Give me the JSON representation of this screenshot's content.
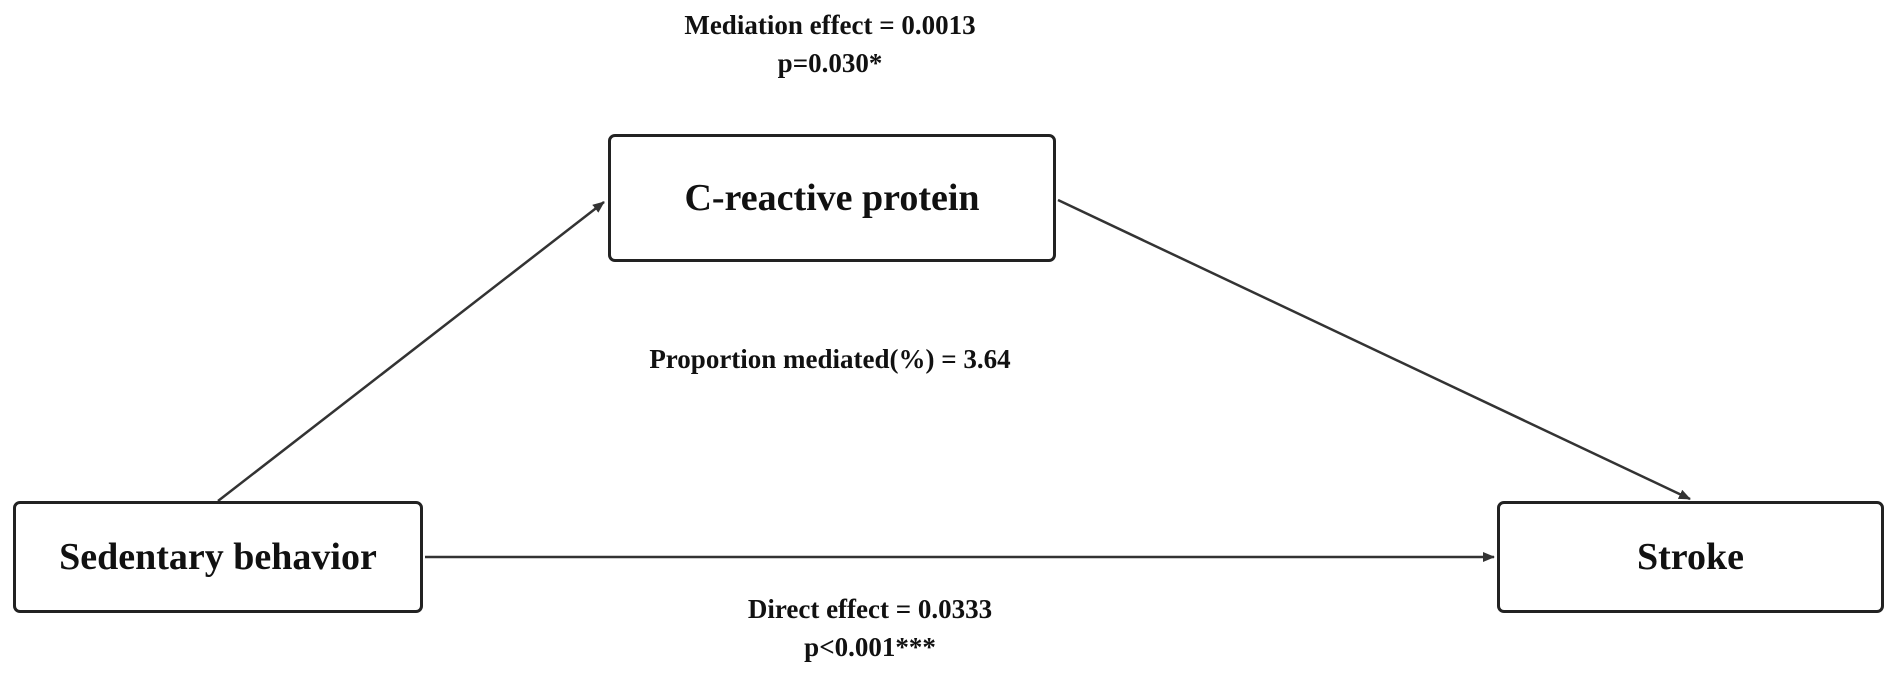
{
  "nodes": {
    "mediator": "C-reactive protein",
    "exposure": "Sedentary behavior",
    "outcome": "Stroke"
  },
  "annotations": {
    "mediation_effect": "Mediation effect = 0.0013",
    "mediation_p": "p=0.030*",
    "proportion_mediated": "Proportion mediated(%) = 3.64",
    "direct_effect": "Direct effect = 0.0333",
    "direct_p": "p<0.001***"
  },
  "colors": {
    "line": "#333333",
    "box_border": "#222222",
    "text": "#111111"
  }
}
